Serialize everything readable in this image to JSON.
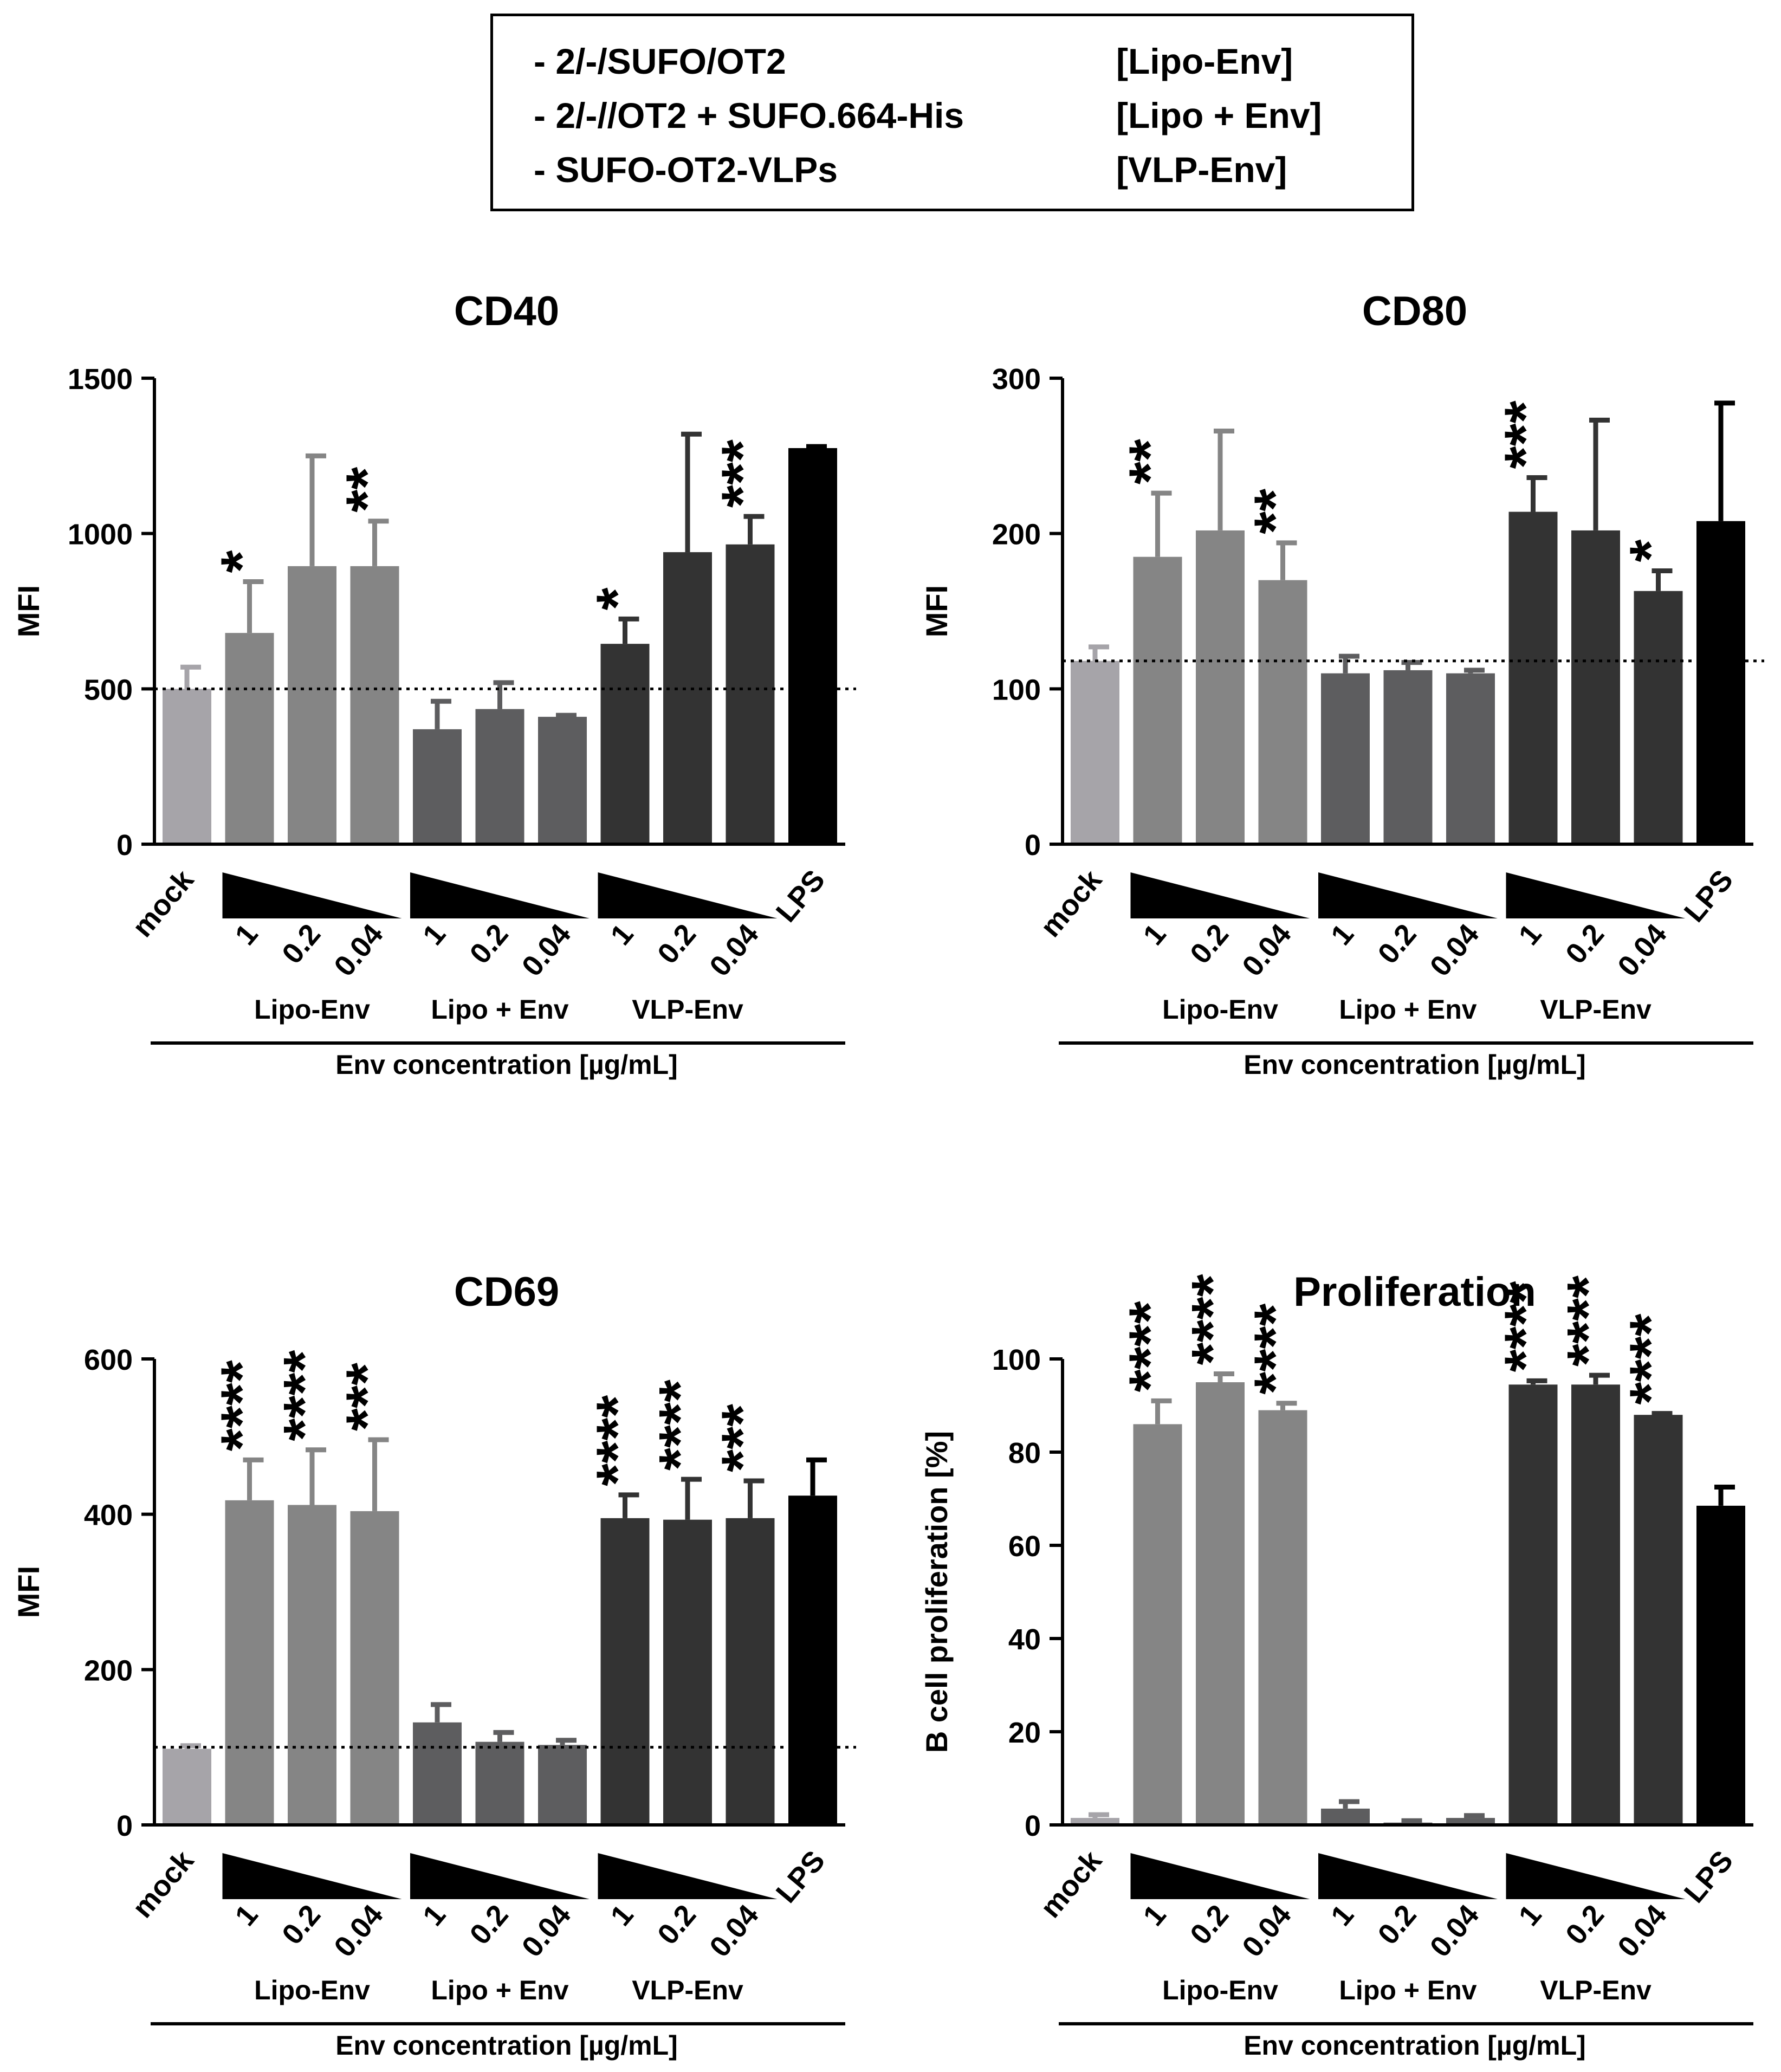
{
  "legend": {
    "items": [
      {
        "label": "- 2/-/SUFO/OT2",
        "tag": "[Lipo-Env]"
      },
      {
        "label": "- 2/-//OT2 + SUFO.664-His",
        "tag": "[Lipo + Env]"
      },
      {
        "label": "- SUFO-OT2-VLPs",
        "tag": "[VLP-Env]"
      }
    ]
  },
  "colors": {
    "mock": "#a6a4a9",
    "lipo_env": "#858585",
    "lipo_plus_env": "#5d5d5f",
    "vlp_env": "#333333",
    "lps": "#000000"
  },
  "chart_data": [
    {
      "type": "bar",
      "title": "CD40",
      "ylabel": "MFI",
      "xlabel": "Env concentration [µg/mL]",
      "ylim": [
        0,
        1500
      ],
      "yticks": [
        0,
        500,
        1000,
        1500
      ],
      "baseline": 500,
      "categories": [
        "mock",
        "1",
        "0.2",
        "0.04",
        "1",
        "0.2",
        "0.04",
        "1",
        "0.2",
        "0.04",
        "LPS"
      ],
      "groups": [
        "Lipo-Env",
        "Lipo + Env",
        "VLP-Env"
      ],
      "values": [
        500,
        680,
        895,
        895,
        370,
        435,
        410,
        645,
        940,
        965,
        1275
      ],
      "errors": [
        70,
        165,
        355,
        145,
        90,
        85,
        5,
        80,
        380,
        90,
        5
      ],
      "significance": [
        "",
        "*",
        "",
        "**",
        "",
        "",
        "",
        "*",
        "",
        "***",
        ""
      ]
    },
    {
      "type": "bar",
      "title": "CD80",
      "ylabel": "MFI",
      "xlabel": "Env concentration [µg/mL]",
      "ylim": [
        0,
        300
      ],
      "yticks": [
        0,
        100,
        200,
        300
      ],
      "baseline": 118,
      "categories": [
        "mock",
        "1",
        "0.2",
        "0.04",
        "1",
        "0.2",
        "0.04",
        "1",
        "0.2",
        "0.04",
        "LPS"
      ],
      "groups": [
        "Lipo-Env",
        "Lipo + Env",
        "VLP-Env"
      ],
      "values": [
        118,
        185,
        202,
        170,
        110,
        112,
        110,
        214,
        202,
        163,
        208
      ],
      "errors": [
        9,
        41,
        64,
        24,
        11,
        5,
        2,
        22,
        71,
        13,
        76
      ],
      "significance": [
        "",
        "**",
        "",
        "**",
        "",
        "",
        "",
        "***",
        "",
        "*",
        ""
      ]
    },
    {
      "type": "bar",
      "title": "CD69",
      "ylabel": "MFI",
      "xlabel": "Env concentration [µg/mL]",
      "ylim": [
        0,
        600
      ],
      "yticks": [
        0,
        200,
        400,
        600
      ],
      "baseline": 100,
      "categories": [
        "mock",
        "1",
        "0.2",
        "0.04",
        "1",
        "0.2",
        "0.04",
        "1",
        "0.2",
        "0.04",
        "LPS"
      ],
      "groups": [
        "Lipo-Env",
        "Lipo + Env",
        "VLP-Env"
      ],
      "values": [
        98,
        418,
        412,
        404,
        132,
        107,
        103,
        395,
        393,
        395,
        424
      ],
      "errors": [
        4,
        52,
        71,
        92,
        23,
        12,
        6,
        30,
        52,
        48,
        46
      ],
      "significance": [
        "",
        "****",
        "****",
        "***",
        "",
        "",
        "",
        "****",
        "****",
        "***",
        ""
      ]
    },
    {
      "type": "bar",
      "title": "Proliferation",
      "ylabel": "B cell proliferation [%]",
      "xlabel": "Env concentration [µg/mL]",
      "ylim": [
        0,
        100
      ],
      "yticks": [
        0,
        20,
        40,
        60,
        80,
        100
      ],
      "baseline": null,
      "categories": [
        "mock",
        "1",
        "0.2",
        "0.04",
        "1",
        "0.2",
        "0.04",
        "1",
        "0.2",
        "0.04",
        "LPS"
      ],
      "groups": [
        "Lipo-Env",
        "Lipo + Env",
        "VLP-Env"
      ],
      "values": [
        1.5,
        86,
        95,
        89,
        3.5,
        0.5,
        1.5,
        94.5,
        94.5,
        88,
        68.5
      ],
      "errors": [
        0.7,
        5,
        1.8,
        1.5,
        1.5,
        0.4,
        0.5,
        0.8,
        2,
        0.3,
        4
      ],
      "significance": [
        "",
        "****",
        "****",
        "****",
        "",
        "",
        "",
        "****",
        "****",
        "****",
        ""
      ]
    }
  ]
}
